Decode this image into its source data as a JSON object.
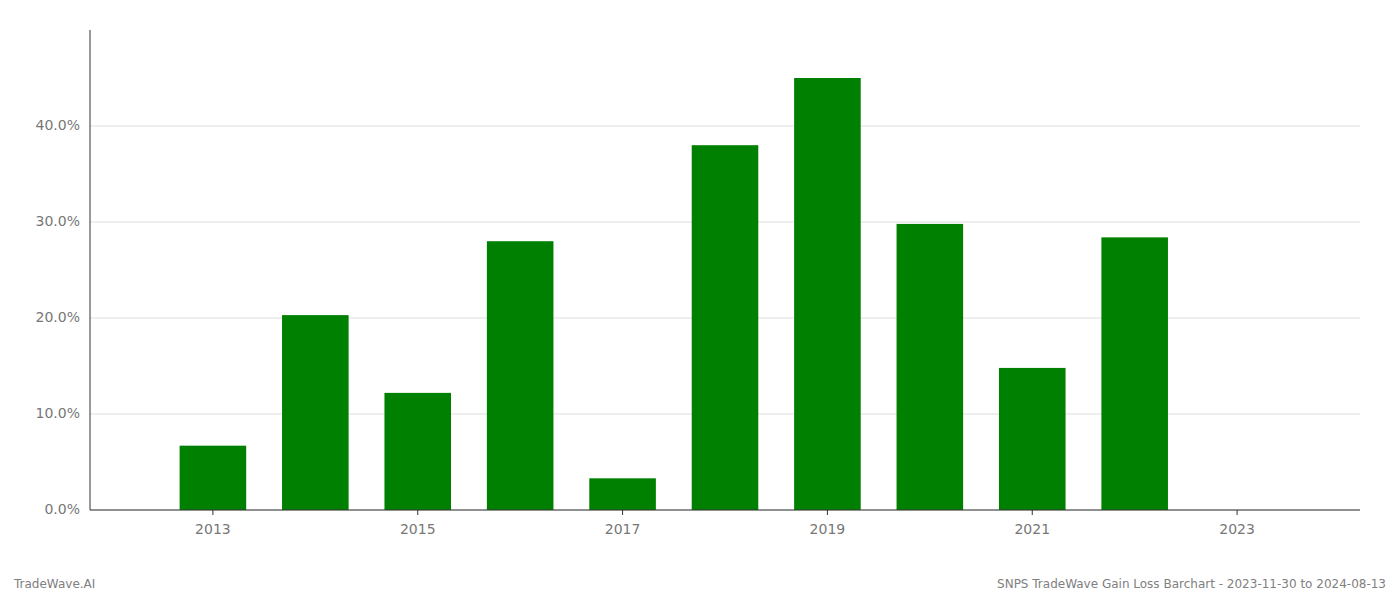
{
  "chart_data": {
    "type": "bar",
    "x": [
      2013,
      2014,
      2015,
      2016,
      2017,
      2018,
      2019,
      2020,
      2021,
      2022
    ],
    "values": [
      0.067,
      0.203,
      0.122,
      0.28,
      0.033,
      0.38,
      0.45,
      0.298,
      0.148,
      0.284
    ],
    "color": "#008000",
    "xlim": [
      2011.8,
      2024.2
    ],
    "xticks": [
      2013,
      2015,
      2017,
      2019,
      2021,
      2023
    ],
    "ylim": [
      0,
      0.5
    ],
    "yticks": [
      {
        "value": 0.0,
        "label": "0.0%"
      },
      {
        "value": 0.1,
        "label": "10.0%"
      },
      {
        "value": 0.2,
        "label": "20.0%"
      },
      {
        "value": 0.3,
        "label": "30.0%"
      },
      {
        "value": 0.4,
        "label": "40.0%"
      }
    ],
    "grid": true,
    "annotations": [
      "TradeWave.AI",
      "SNPS TradeWave Gain Loss Barchart - 2023-11-30 to 2024-08-13"
    ]
  }
}
